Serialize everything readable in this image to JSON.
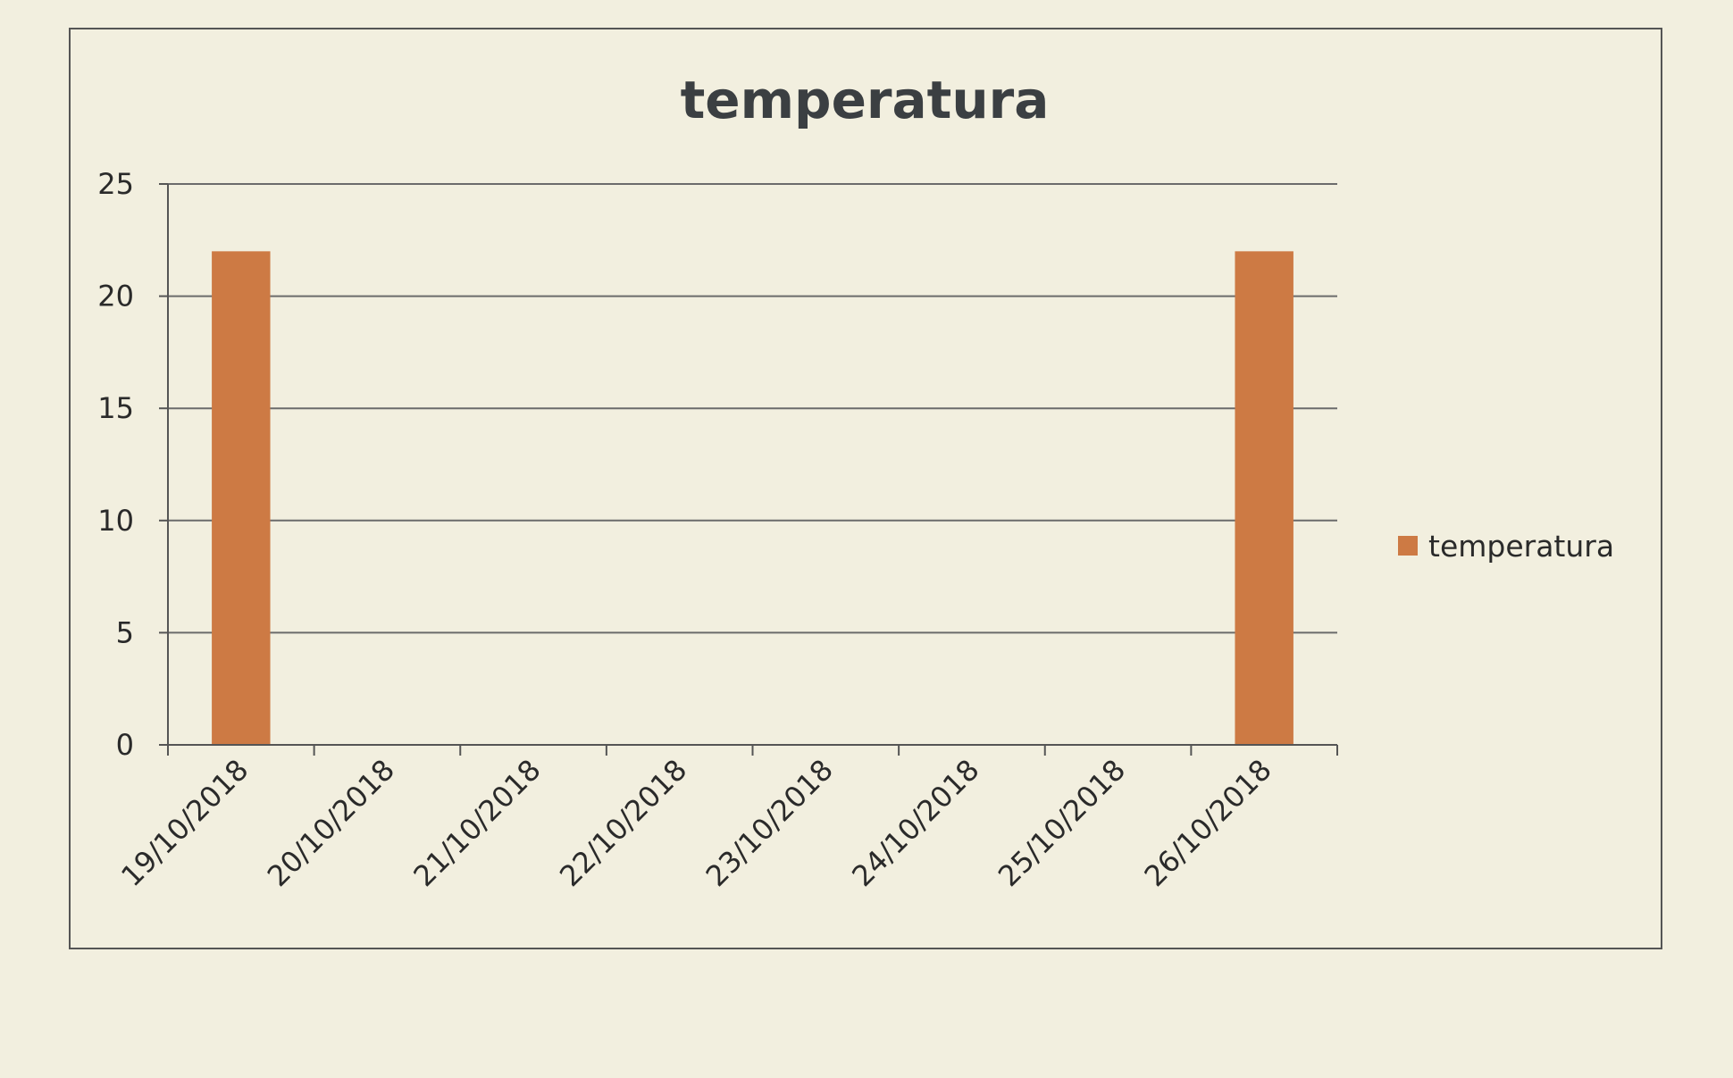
{
  "chart_data": {
    "type": "bar",
    "title": "temperatura",
    "categories": [
      "19/10/2018",
      "20/10/2018",
      "21/10/2018",
      "22/10/2018",
      "23/10/2018",
      "24/10/2018",
      "25/10/2018",
      "26/10/2018"
    ],
    "series": [
      {
        "name": "temperatura",
        "values": [
          22,
          null,
          null,
          null,
          null,
          null,
          null,
          22
        ],
        "color": "#cd7a44"
      }
    ],
    "ylim": [
      0,
      25
    ],
    "yticks": [
      0,
      5,
      10,
      15,
      20,
      25
    ],
    "grid": true,
    "legend_position": "right"
  }
}
